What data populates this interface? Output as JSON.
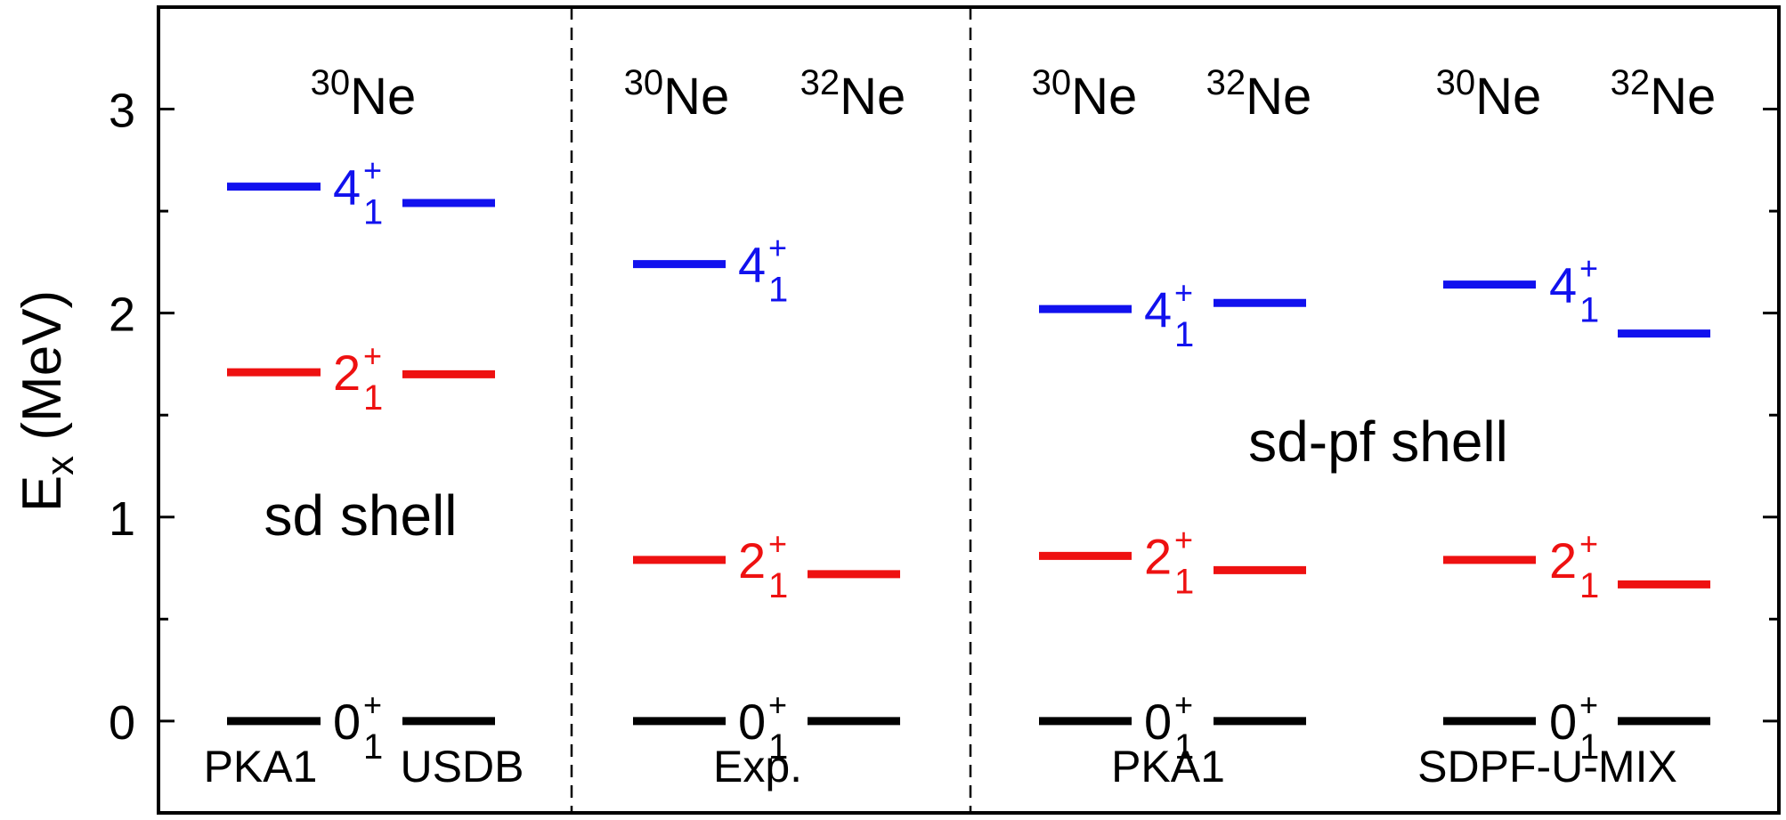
{
  "chart_data": {
    "type": "level-scheme",
    "ylabel": "E",
    "ylabel_sub": "x",
    "ylabel_unit": " (MeV)",
    "ylim": [
      -0.45,
      3.5
    ],
    "yticks": [
      0,
      1,
      2,
      3
    ],
    "grid": false,
    "colors": {
      "0": "#000000",
      "2": "#ee1111",
      "4": "#1111ee",
      "frame": "#000000"
    },
    "state_labels": {
      "0": {
        "j": "0",
        "sup": "+",
        "sub": "1"
      },
      "2": {
        "j": "2",
        "sup": "+",
        "sub": "1"
      },
      "4": {
        "j": "4",
        "sup": "+",
        "sub": "1"
      }
    },
    "panels": [
      {
        "nuclei": [
          {
            "mass": "30",
            "symbol": "Ne"
          }
        ],
        "shell_label": "sd shell",
        "models": [
          {
            "name": "PKA1",
            "levels": {
              "0": 0.0,
              "2": 1.71,
              "4": 2.62
            }
          },
          {
            "name": "USDB",
            "levels": {
              "0": 0.0,
              "2": 1.7,
              "4": 2.54
            }
          }
        ]
      },
      {
        "nuclei": [
          {
            "mass": "30",
            "symbol": "Ne"
          },
          {
            "mass": "32",
            "symbol": "Ne"
          }
        ],
        "shell_label": "",
        "model_label": "Exp.",
        "levels": [
          {
            "0": 0.0,
            "2": 0.79,
            "4": 2.24
          },
          {
            "0": 0.0,
            "2": 0.72
          }
        ]
      },
      {
        "nuclei": [
          {
            "mass": "30",
            "symbol": "Ne"
          },
          {
            "mass": "32",
            "symbol": "Ne"
          }
        ],
        "model_label": "PKA1",
        "levels": [
          {
            "0": 0.0,
            "2": 0.81,
            "4": 2.02
          },
          {
            "0": 0.0,
            "2": 0.74,
            "4": 2.05
          }
        ]
      },
      {
        "nuclei": [
          {
            "mass": "30",
            "symbol": "Ne"
          },
          {
            "mass": "32",
            "symbol": "Ne"
          }
        ],
        "model_label": "SDPF-U-MIX",
        "levels": [
          {
            "0": 0.0,
            "2": 0.79,
            "4": 2.14
          },
          {
            "0": 0.0,
            "2": 0.67,
            "4": 1.9
          }
        ]
      }
    ],
    "shared_label": "sd-pf shell",
    "shared_label_energy": 1.37
  }
}
